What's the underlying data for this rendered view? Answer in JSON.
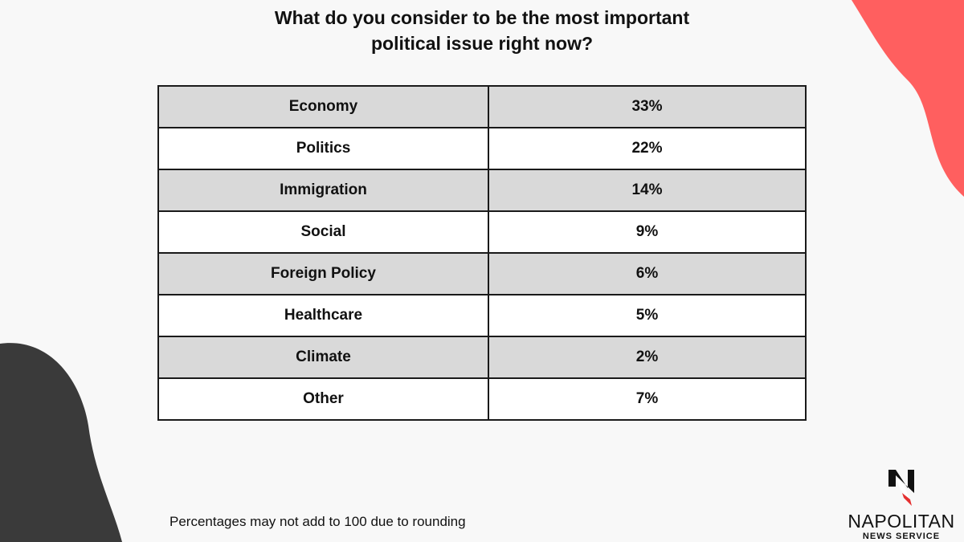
{
  "title_lines": [
    "What do you consider to be the most important",
    "political issue right now?"
  ],
  "chart_data": {
    "type": "table",
    "title": "What do you consider to be the most important political issue right now?",
    "rows": [
      {
        "label": "Economy",
        "value": "33%"
      },
      {
        "label": "Politics",
        "value": "22%"
      },
      {
        "label": "Immigration",
        "value": "14%"
      },
      {
        "label": "Social",
        "value": "9%"
      },
      {
        "label": "Foreign Policy",
        "value": "6%"
      },
      {
        "label": "Healthcare",
        "value": "5%"
      },
      {
        "label": "Climate",
        "value": "2%"
      },
      {
        "label": "Other",
        "value": "7%"
      }
    ]
  },
  "footnote": "Percentages may not add to 100 due to rounding",
  "logo": {
    "name": "NAPOLITAN",
    "tagline": "NEWS SERVICE"
  },
  "colors": {
    "accent": "#ff5f5f",
    "dark": "#3a3a3a",
    "row_alt": "#d9d9d9"
  }
}
